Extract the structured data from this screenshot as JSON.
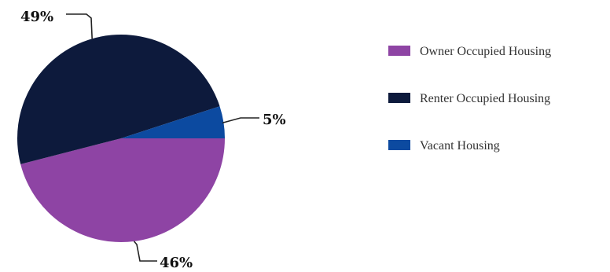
{
  "chart_data": {
    "type": "pie",
    "title": "",
    "legend_position": "right",
    "series": [
      {
        "name": "Owner Occupied Housing",
        "value": 46,
        "label": "46%",
        "color": "#8e44a4"
      },
      {
        "name": "Renter Occupied Housing",
        "value": 49,
        "label": "49%",
        "color": "#0d1a3c"
      },
      {
        "name": "Vacant Housing",
        "value": 5,
        "label": "5%",
        "color": "#0c4aa0"
      }
    ]
  }
}
